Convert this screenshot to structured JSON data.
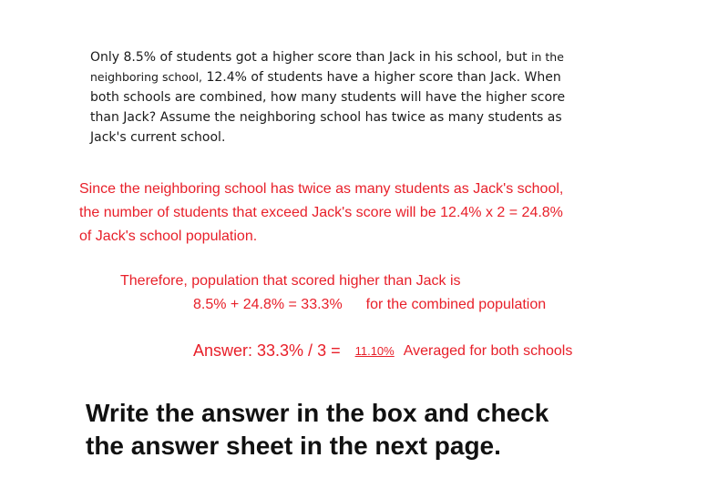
{
  "question": {
    "lines": [
      "Only 8.5% of students got a higher score than Jack in his school, but",
      "in the",
      "neighboring school,",
      "12.4% of students have a higher score than Jack. When",
      "both schools are combined, how many students will have the higher score",
      "than Jack? Assume the neighboring school has twice as many students as",
      "Jack's current school."
    ]
  },
  "solution": {
    "lines": [
      "Since the neighboring school has twice as many students as Jack's school,",
      "the number of students that exceed Jack's score will be 12.4% x 2 = 24.8%",
      "of Jack's school population."
    ]
  },
  "therefore": "Therefore, population that scored higher than Jack is",
  "calc": {
    "equation": "8.5% + 24.8% = 33.3%",
    "note": "for the combined population"
  },
  "answer": {
    "label": "Answer: 33.3% / 3 =",
    "value": "11.10%",
    "note": "Averaged for both schools"
  },
  "instruction": {
    "lines": [
      "Write the answer in the box and check",
      "the answer sheet in the next page."
    ]
  }
}
